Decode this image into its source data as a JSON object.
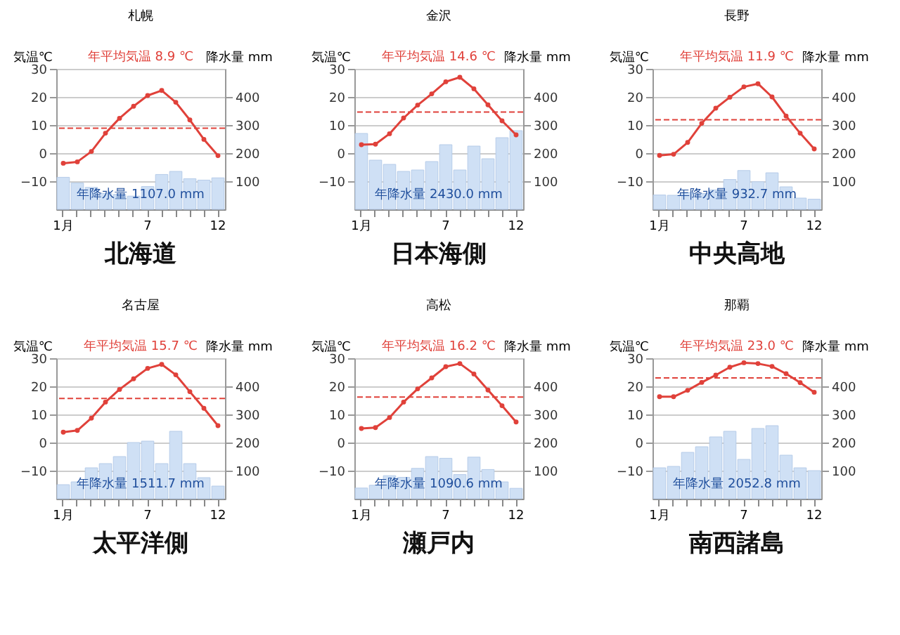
{
  "chart_data": [
    {
      "type": "line",
      "title": "札幌",
      "ylabel": "気温℃",
      "y2label": "降水量 mm",
      "categories": [
        "1月",
        null,
        null,
        null,
        null,
        null,
        "7",
        null,
        null,
        null,
        null,
        "12"
      ],
      "ylim": [
        -20,
        30
      ],
      "yticks": [
        -10,
        0,
        10,
        20,
        30
      ],
      "y2lim": [
        0,
        500
      ],
      "y2ticks": [
        100,
        200,
        300,
        400
      ],
      "grid": "y",
      "marker": "circle",
      "line_style": "solid",
      "series": [
        {
          "type": "bar",
          "axis": "y2",
          "color": "#cfe0f5",
          "values": [
            114,
            94,
            78,
            57,
            53,
            47,
            81,
            124,
            135,
            109,
            104,
            112
          ]
        },
        {
          "axis": "y",
          "color": "#e0413a",
          "values": [
            -3.6,
            -3.1,
            0.6,
            7.1,
            12.4,
            16.7,
            20.5,
            22.3,
            18.1,
            11.8,
            4.9,
            -0.9
          ]
        }
      ],
      "ref_lines": [
        {
          "axis": "y",
          "value": 8.9,
          "color": "#e0413a",
          "line_style": "dashed"
        }
      ],
      "annotations": [
        "年平均気温 8.9 ℃",
        "年降水量 1107.0 mm",
        "北海道"
      ]
    },
    {
      "type": "line",
      "title": "金沢",
      "ylabel": "気温℃",
      "y2label": "降水量 mm",
      "categories": [
        "1月",
        null,
        null,
        null,
        null,
        null,
        "7",
        null,
        null,
        null,
        null,
        "12"
      ],
      "ylim": [
        -20,
        30
      ],
      "yticks": [
        -10,
        0,
        10,
        20,
        30
      ],
      "y2lim": [
        0,
        500
      ],
      "y2ticks": [
        100,
        200,
        300,
        400
      ],
      "grid": "y",
      "marker": "circle",
      "line_style": "solid",
      "series": [
        {
          "type": "bar",
          "axis": "y2",
          "color": "#cfe0f5",
          "values": [
            270,
            175,
            160,
            135,
            140,
            170,
            230,
            140,
            225,
            180,
            255,
            280
          ]
        },
        {
          "axis": "y",
          "color": "#e0413a",
          "values": [
            3.0,
            3.2,
            6.9,
            12.5,
            17.1,
            21.1,
            25.4,
            27.0,
            22.9,
            17.2,
            11.5,
            6.5
          ]
        }
      ],
      "ref_lines": [
        {
          "axis": "y",
          "value": 14.6,
          "color": "#e0413a",
          "line_style": "dashed"
        }
      ],
      "annotations": [
        "年平均気温 14.6 ℃",
        "年降水量 2430.0 mm",
        "日本海側"
      ]
    },
    {
      "type": "line",
      "title": "長野",
      "ylabel": "気温℃",
      "y2label": "降水量 mm",
      "categories": [
        "1月",
        null,
        null,
        null,
        null,
        null,
        "7",
        null,
        null,
        null,
        null,
        "12"
      ],
      "ylim": [
        -20,
        30
      ],
      "yticks": [
        -10,
        0,
        10,
        20,
        30
      ],
      "y2lim": [
        0,
        500
      ],
      "y2ticks": [
        100,
        200,
        300,
        400
      ],
      "grid": "y",
      "marker": "circle",
      "line_style": "solid",
      "series": [
        {
          "type": "bar",
          "axis": "y2",
          "color": "#cfe0f5",
          "values": [
            51,
            50,
            60,
            56,
            69,
            106,
            138,
            98,
            130,
            80,
            40,
            36
          ]
        },
        {
          "axis": "y",
          "color": "#e0413a",
          "values": [
            -0.8,
            -0.4,
            3.8,
            10.6,
            16.0,
            19.9,
            23.6,
            24.7,
            20.0,
            13.2,
            7.1,
            1.5
          ]
        }
      ],
      "ref_lines": [
        {
          "axis": "y",
          "value": 11.9,
          "color": "#e0413a",
          "line_style": "dashed"
        }
      ],
      "annotations": [
        "年平均気温 11.9 ℃",
        "年降水量 932.7 mm",
        "中央高地"
      ]
    },
    {
      "type": "line",
      "title": "名古屋",
      "ylabel": "気温℃",
      "y2label": "降水量 mm",
      "categories": [
        "1月",
        null,
        null,
        null,
        null,
        null,
        "7",
        null,
        null,
        null,
        null,
        "12"
      ],
      "ylim": [
        -20,
        30
      ],
      "yticks": [
        -10,
        0,
        10,
        20,
        30
      ],
      "y2lim": [
        0,
        500
      ],
      "y2ticks": [
        100,
        200,
        300,
        400
      ],
      "grid": "y",
      "marker": "circle",
      "line_style": "solid",
      "series": [
        {
          "type": "bar",
          "axis": "y2",
          "color": "#cfe0f5",
          "values": [
            50,
            60,
            110,
            125,
            150,
            200,
            205,
            125,
            240,
            125,
            75,
            45
          ]
        },
        {
          "axis": "y",
          "color": "#e0413a",
          "values": [
            3.7,
            4.3,
            8.7,
            14.4,
            18.9,
            22.7,
            26.4,
            27.8,
            24.1,
            18.1,
            12.2,
            6.0
          ]
        }
      ],
      "ref_lines": [
        {
          "axis": "y",
          "value": 15.7,
          "color": "#e0413a",
          "line_style": "dashed"
        }
      ],
      "annotations": [
        "年平均気温 15.7 ℃",
        "年降水量 1511.7 mm",
        "太平洋側"
      ]
    },
    {
      "type": "line",
      "title": "高松",
      "ylabel": "気温℃",
      "y2label": "降水量 mm",
      "categories": [
        "1月",
        null,
        null,
        null,
        null,
        null,
        "7",
        null,
        null,
        null,
        null,
        "12"
      ],
      "ylim": [
        -20,
        30
      ],
      "yticks": [
        -10,
        0,
        10,
        20,
        30
      ],
      "y2lim": [
        0,
        500
      ],
      "y2ticks": [
        100,
        200,
        300,
        400
      ],
      "grid": "y",
      "marker": "circle",
      "line_style": "solid",
      "series": [
        {
          "type": "bar",
          "axis": "y2",
          "color": "#cfe0f5",
          "values": [
            38,
            48,
            82,
            76,
            108,
            150,
            144,
            86,
            148,
            104,
            60,
            37
          ]
        },
        {
          "axis": "y",
          "color": "#e0413a",
          "values": [
            5.0,
            5.3,
            8.9,
            14.4,
            19.1,
            23.0,
            27.0,
            28.1,
            24.4,
            18.7,
            13.1,
            7.3
          ]
        }
      ],
      "ref_lines": [
        {
          "axis": "y",
          "value": 16.2,
          "color": "#e0413a",
          "line_style": "dashed"
        }
      ],
      "annotations": [
        "年平均気温 16.2 ℃",
        "年降水量 1090.6 mm",
        "瀬戸内"
      ]
    },
    {
      "type": "line",
      "title": "那覇",
      "ylabel": "気温℃",
      "y2label": "降水量 mm",
      "categories": [
        "1月",
        null,
        null,
        null,
        null,
        null,
        "7",
        null,
        null,
        null,
        null,
        "12"
      ],
      "ylim": [
        -20,
        30
      ],
      "yticks": [
        -10,
        0,
        10,
        20,
        30
      ],
      "y2lim": [
        0,
        500
      ],
      "y2ticks": [
        100,
        200,
        300,
        400
      ],
      "grid": "y",
      "marker": "circle",
      "line_style": "solid",
      "series": [
        {
          "type": "bar",
          "axis": "y2",
          "color": "#cfe0f5",
          "values": [
            110,
            115,
            165,
            185,
            220,
            240,
            140,
            250,
            260,
            155,
            110,
            100
          ]
        },
        {
          "axis": "y",
          "color": "#e0413a",
          "values": [
            16.3,
            16.3,
            18.6,
            21.4,
            24.0,
            26.8,
            28.4,
            28.1,
            27.1,
            24.5,
            21.3,
            17.9
          ]
        }
      ],
      "ref_lines": [
        {
          "axis": "y",
          "value": 23.0,
          "color": "#e0413a",
          "line_style": "dashed"
        }
      ],
      "annotations": [
        "年平均気温 23.0 ℃",
        "年降水量 2052.8 mm",
        "南西諸島"
      ]
    }
  ]
}
